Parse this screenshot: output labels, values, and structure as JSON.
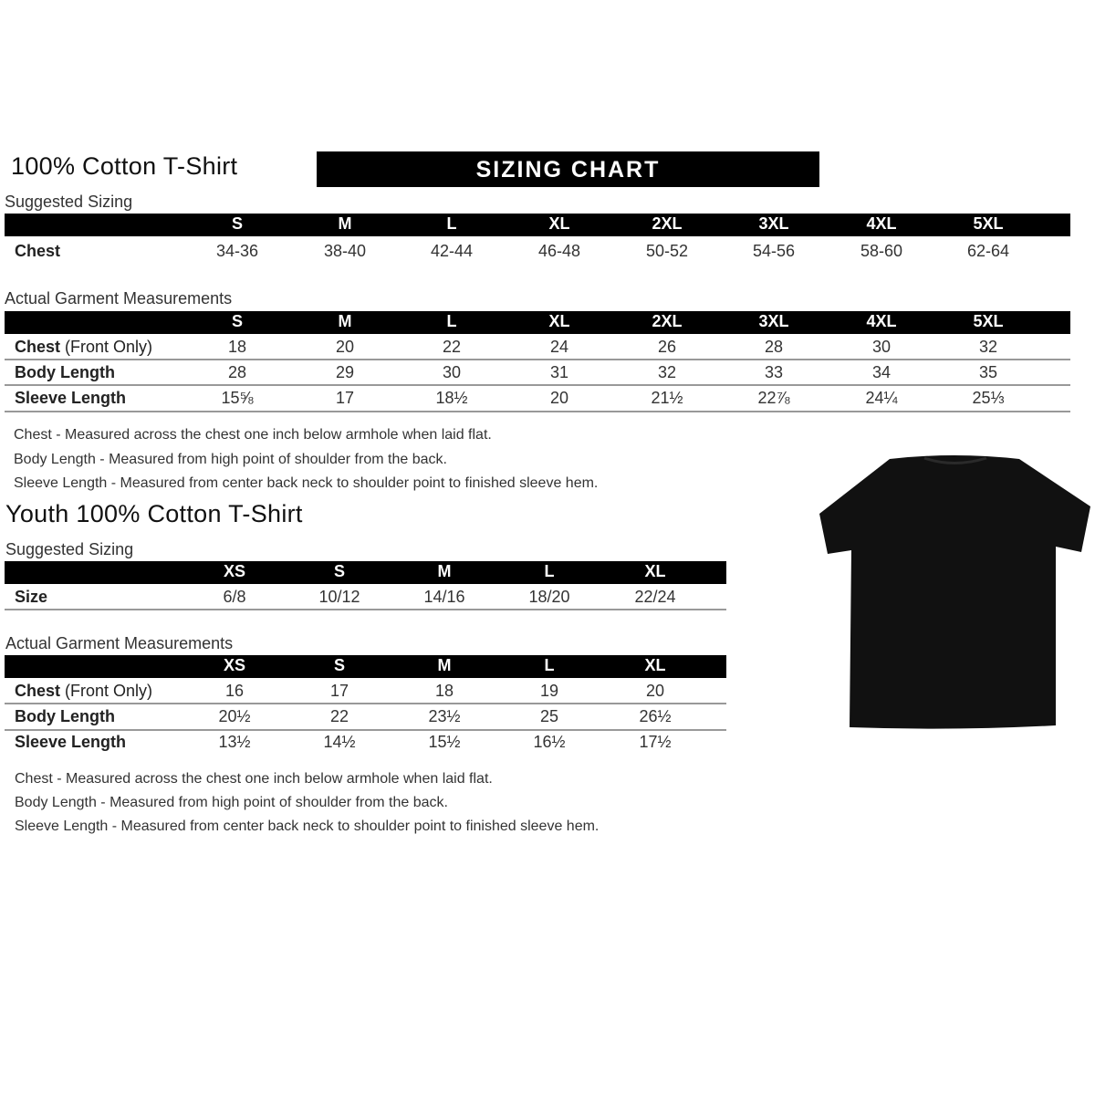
{
  "adult": {
    "title": "100% Cotton T-Shirt",
    "banner": "SIZING CHART",
    "suggested_label": "Suggested Sizing",
    "sizes": [
      "S",
      "M",
      "L",
      "XL",
      "2XL",
      "3XL",
      "4XL",
      "5XL"
    ],
    "suggested_rows": [
      {
        "label": "Chest",
        "label_extra": "",
        "values": [
          "34-36",
          "38-40",
          "42-44",
          "46-48",
          "50-52",
          "54-56",
          "58-60",
          "62-64"
        ]
      }
    ],
    "actual_label": "Actual Garment Measurements",
    "actual_rows": [
      {
        "label": "Chest",
        "label_extra": " (Front Only)",
        "values": [
          "18",
          "20",
          "22",
          "24",
          "26",
          "28",
          "30",
          "32"
        ]
      },
      {
        "label": "Body Length",
        "label_extra": "",
        "values": [
          "28",
          "29",
          "30",
          "31",
          "32",
          "33",
          "34",
          "35"
        ]
      },
      {
        "label": "Sleeve Length",
        "label_extra": "",
        "values": [
          "15⅝",
          "17",
          "18½",
          "20",
          "21½",
          "22⅞",
          "24¼",
          "25⅓"
        ]
      }
    ],
    "notes": [
      "Chest - Measured across the chest one inch below armhole when laid flat.",
      "Body Length - Measured from high point of shoulder from the back.",
      "Sleeve Length - Measured from center back neck to shoulder point to finished sleeve hem."
    ]
  },
  "youth": {
    "title": "Youth 100% Cotton T-Shirt",
    "suggested_label": "Suggested Sizing",
    "sizes": [
      "XS",
      "S",
      "M",
      "L",
      "XL"
    ],
    "suggested_rows": [
      {
        "label": "Size",
        "label_extra": "",
        "values": [
          "6/8",
          "10/12",
          "14/16",
          "18/20",
          "22/24"
        ]
      }
    ],
    "actual_label": "Actual Garment Measurements",
    "actual_rows": [
      {
        "label": "Chest",
        "label_extra": " (Front Only)",
        "values": [
          "16",
          "17",
          "18",
          "19",
          "20"
        ]
      },
      {
        "label": "Body Length",
        "label_extra": "",
        "values": [
          "20½",
          "22",
          "23½",
          "25",
          "26½"
        ]
      },
      {
        "label": "Sleeve Length",
        "label_extra": "",
        "values": [
          "13½",
          "14½",
          "15½",
          "16½",
          "17½"
        ]
      }
    ],
    "notes": [
      "Chest - Measured across the chest one inch below armhole when laid flat.",
      "Body Length - Measured from high point of shoulder from the back.",
      "Sleeve Length - Measured from center back neck to shoulder point to finished sleeve hem."
    ]
  },
  "tshirt_icon": "black-tshirt-icon",
  "colors": {
    "bar": "#000000",
    "shirt": "#111111"
  }
}
